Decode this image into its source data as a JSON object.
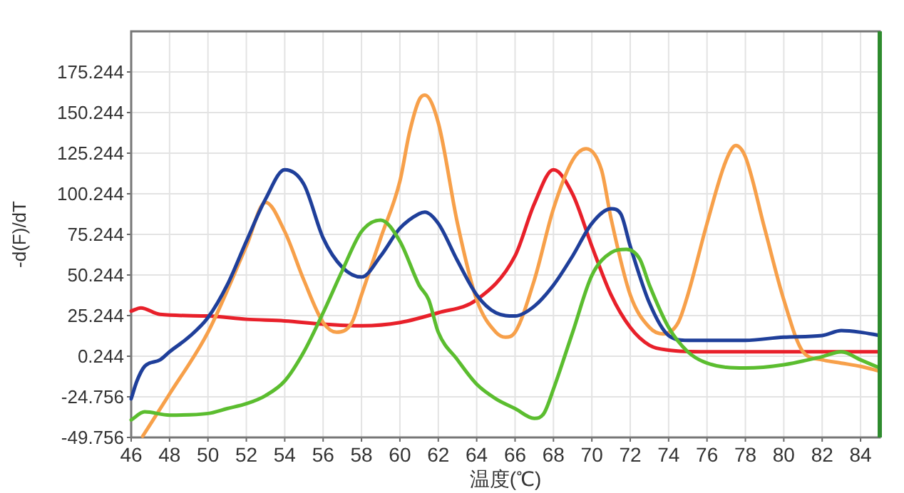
{
  "chart_data": {
    "type": "line",
    "xlabel": "温度(℃)",
    "ylabel": "-d(F)/dT",
    "xlim": [
      46,
      85
    ],
    "xticks": [
      46,
      48,
      50,
      52,
      54,
      56,
      58,
      60,
      62,
      64,
      66,
      68,
      70,
      72,
      74,
      76,
      78,
      80,
      82,
      84
    ],
    "ylim": [
      -49.756,
      200.244
    ],
    "yticks": [
      -49.756,
      -24.756,
      0.244,
      25.244,
      50.244,
      75.244,
      100.244,
      125.244,
      150.244,
      175.244
    ],
    "grid": true,
    "line_style": "solid",
    "marker": "none",
    "ref_lines": [
      {
        "axis": "x",
        "value": 85,
        "label": null,
        "color": "#2e8b2e",
        "line_style": "solid"
      }
    ],
    "series": [
      {
        "color": "#e8202a",
        "x": [
          46,
          46.5,
          47.5,
          50,
          52,
          54,
          56,
          58,
          60,
          62,
          64,
          66,
          67,
          68,
          69,
          70,
          71,
          72,
          73,
          74,
          76,
          80,
          85
        ],
        "values": [
          28,
          30,
          26,
          25,
          23,
          22,
          20,
          19,
          21,
          27,
          35,
          62,
          94,
          115,
          100,
          68,
          38,
          18,
          7,
          4,
          3,
          3,
          3
        ]
      },
      {
        "color": "#f7a04a",
        "x": [
          46.6,
          48,
          50,
          52,
          53,
          54,
          55,
          56,
          56.7,
          57.5,
          58,
          59,
          60,
          60.5,
          61,
          61.3,
          62,
          63,
          64,
          65,
          65.5,
          66,
          67,
          68,
          69,
          69.7,
          70.5,
          71,
          72,
          73,
          73.7,
          74.5,
          75,
          76,
          77,
          77.5,
          78,
          79,
          80,
          81,
          82,
          83,
          84,
          85
        ],
        "values": [
          -49,
          -23,
          15,
          68,
          95,
          77,
          47,
          21,
          15,
          21,
          38,
          73,
          108,
          138,
          158,
          161,
          144,
          82,
          35,
          15,
          12,
          15,
          47,
          91,
          121,
          128,
          115,
          85,
          38,
          18,
          14,
          21,
          38,
          82,
          121,
          130,
          123,
          79,
          35,
          3,
          -2,
          -4,
          -6,
          -9
        ]
      },
      {
        "color": "#1f3f9a",
        "x": [
          46,
          46.3,
          46.7,
          47.5,
          48,
          49,
          50,
          51,
          52,
          53,
          54,
          55,
          56,
          57,
          58,
          59,
          60,
          61,
          61.3,
          62,
          63,
          64,
          65,
          66,
          67,
          68,
          69,
          70,
          71,
          71.5,
          72,
          73,
          74,
          75,
          78,
          80,
          82,
          83,
          84,
          85
        ],
        "values": [
          -26,
          -15,
          -6,
          -2,
          3,
          12,
          24,
          44,
          71,
          97,
          115,
          106,
          73,
          55,
          49,
          62,
          79,
          88,
          89,
          82,
          59,
          38,
          27,
          25,
          31,
          44,
          62,
          82,
          91,
          88,
          68,
          33,
          13,
          10,
          10,
          12,
          13,
          16,
          15,
          13
        ]
      },
      {
        "color": "#5bbd2f",
        "x": [
          46,
          46.7,
          48,
          50,
          51,
          52,
          53,
          54,
          55,
          56,
          57,
          58,
          59,
          60,
          61,
          61.5,
          62,
          63,
          64,
          65,
          66,
          67,
          67.5,
          68,
          69,
          70,
          71,
          71.8,
          72.5,
          73,
          74,
          75,
          76,
          78,
          80,
          82,
          83,
          84,
          85
        ],
        "values": [
          -39,
          -34,
          -36,
          -35,
          -32,
          -29,
          -24,
          -15,
          3,
          27,
          53,
          77,
          84,
          71,
          44,
          35,
          15,
          -2,
          -17,
          -26,
          -32,
          -38,
          -35,
          -20,
          15,
          50,
          64,
          66,
          60,
          44,
          18,
          3,
          -4,
          -7,
          -5,
          0,
          3,
          -2,
          -7
        ]
      }
    ]
  }
}
